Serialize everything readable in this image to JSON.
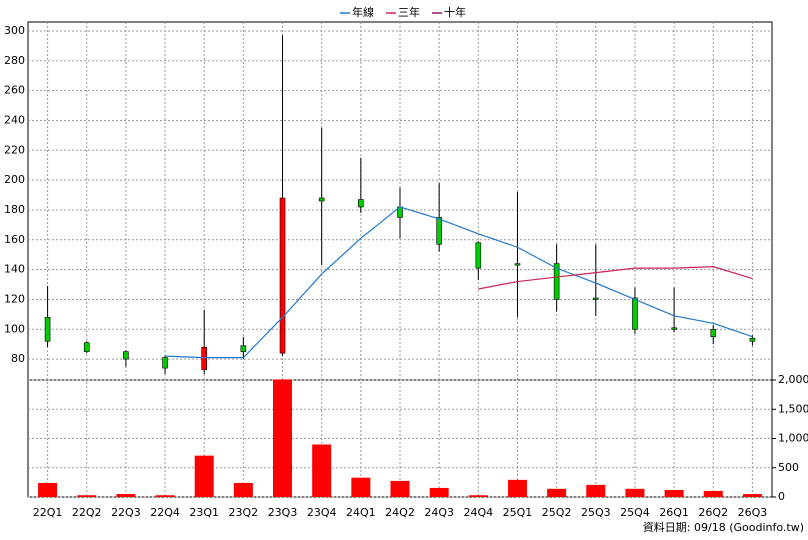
{
  "chart_data": [
    {
      "type": "candlestick",
      "categories": [
        "22Q1",
        "22Q2",
        "22Q3",
        "22Q4",
        "23Q1",
        "23Q2",
        "23Q3",
        "23Q4",
        "24Q1",
        "24Q2",
        "24Q3",
        "24Q4",
        "25Q1",
        "25Q2",
        "25Q3",
        "25Q4",
        "26Q1",
        "26Q2",
        "26Q3"
      ],
      "open": [
        108,
        91,
        85,
        81,
        73,
        89,
        84,
        188,
        187,
        182,
        175,
        158,
        144,
        144,
        121,
        121,
        101,
        100,
        94
      ],
      "high": [
        129,
        92,
        86,
        82,
        113,
        95,
        297,
        235,
        215,
        195,
        198,
        159,
        192,
        157,
        157,
        128,
        128,
        103,
        96
      ],
      "low": [
        88,
        84,
        75,
        70,
        70,
        80,
        82,
        143,
        178,
        161,
        152,
        133,
        108,
        112,
        109,
        97,
        98,
        90,
        89
      ],
      "close": [
        92,
        85,
        80,
        74,
        88,
        85,
        188,
        186,
        182,
        175,
        157,
        141,
        143,
        120,
        120,
        100,
        100,
        95,
        92
      ],
      "up_color": "#ff0000",
      "down_color": "#00cc00",
      "series": [
        {
          "name": "年線",
          "color": "#1f77d0",
          "values": [
            null,
            null,
            null,
            82,
            81,
            81,
            108,
            137,
            161,
            182,
            174,
            164,
            155,
            141,
            131,
            120,
            109,
            104,
            95
          ]
        },
        {
          "name": "三年",
          "color": "#cc2255",
          "values": [
            null,
            null,
            null,
            null,
            null,
            null,
            null,
            null,
            null,
            null,
            null,
            127,
            132,
            135,
            138,
            141,
            141,
            142,
            134
          ]
        },
        {
          "name": "十年",
          "color": "#8b1a6b",
          "values": [
            null,
            null,
            null,
            null,
            null,
            null,
            null,
            null,
            null,
            null,
            null,
            null,
            null,
            null,
            null,
            null,
            null,
            null,
            null
          ]
        }
      ],
      "ylim": [
        66,
        306
      ],
      "yticks": [
        80,
        100,
        120,
        140,
        160,
        180,
        200,
        220,
        240,
        260,
        280,
        300
      ],
      "grid": true
    },
    {
      "type": "bar",
      "color": "#ff0000",
      "values": [
        240,
        30,
        50,
        30,
        707,
        240,
        2010,
        897,
        330,
        275,
        155,
        30,
        293,
        140,
        207,
        140,
        120,
        103,
        50
      ],
      "ylim": [
        0,
        2000
      ],
      "yticks": [
        0,
        500,
        {
          "value": 1000,
          "label": "1,000"
        },
        {
          "value": 1500,
          "label": "1,500"
        },
        {
          "value": 2000,
          "label": "2,000"
        }
      ],
      "grid": true
    }
  ],
  "footer": "資料日期: 09/18 (Goodinfo.tw)"
}
